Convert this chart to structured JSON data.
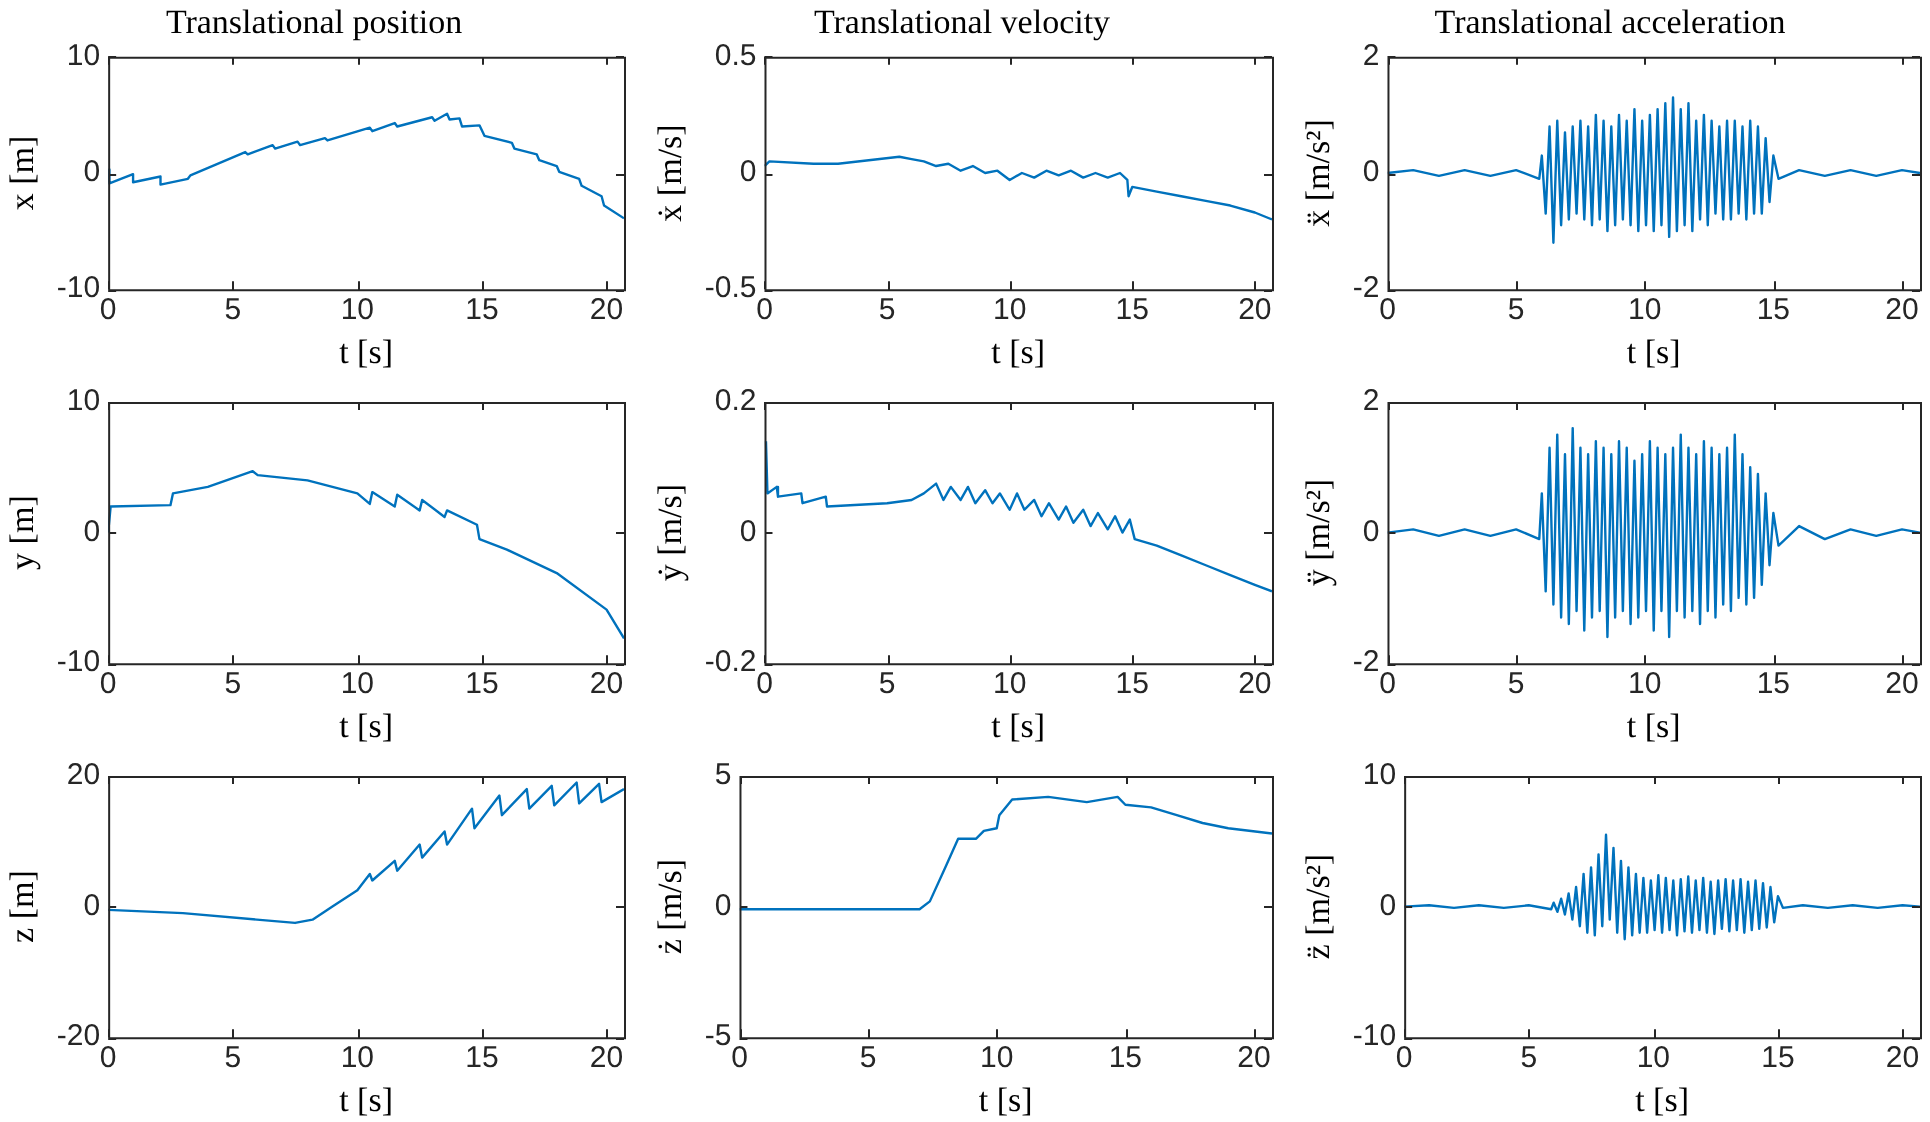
{
  "chart_data": [
    {
      "type": "line",
      "title": "Translational position",
      "xlabel": "t [s]",
      "ylabel": "x [m]",
      "color": "#0072bd",
      "marker": "none",
      "line_style": "solid",
      "xlim": [
        0,
        20.7
      ],
      "xticks": [
        0,
        5,
        10,
        15,
        20
      ],
      "ylim": [
        -10,
        10
      ],
      "yticks": [
        -10,
        0,
        10
      ],
      "x": [
        0,
        0.05,
        1.0,
        1.0,
        2.1,
        2.1,
        3.2,
        3.3,
        5.5,
        5.6,
        6.6,
        6.7,
        7.6,
        7.7,
        8.7,
        8.8,
        10.5,
        10.6,
        11.5,
        11.6,
        13.0,
        13.1,
        13.6,
        13.7,
        14.1,
        14.2,
        14.9,
        15.1,
        16.2,
        16.3,
        17.2,
        17.3,
        18.0,
        18.1,
        18.9,
        19.0,
        19.8,
        19.9,
        20.7
      ],
      "values": [
        0.3,
        -0.9,
        -0.1,
        -0.8,
        -0.3,
        -1.0,
        -0.5,
        -0.2,
        1.8,
        1.6,
        2.4,
        2.1,
        2.7,
        2.4,
        3.0,
        2.8,
        3.9,
        3.6,
        4.3,
        4.0,
        4.8,
        4.5,
        5.1,
        4.6,
        4.7,
        4.0,
        4.1,
        3.2,
        2.6,
        2.1,
        1.6,
        1.1,
        0.6,
        0.1,
        -0.5,
        -1.1,
        -2.0,
        -2.8,
        -3.9
      ]
    },
    {
      "type": "line",
      "title": "Translational velocity",
      "xlabel": "t [s]",
      "ylabel": "ẋ [m/s]",
      "color": "#0072bd",
      "marker": "none",
      "line_style": "solid",
      "xlim": [
        0,
        20.7
      ],
      "xticks": [
        0,
        5,
        10,
        15,
        20
      ],
      "ylim": [
        -0.5,
        0.5
      ],
      "yticks": [
        -0.5,
        0,
        0.5
      ],
      "x": [
        0,
        0.2,
        2,
        3,
        5.5,
        6,
        6.5,
        7,
        7.5,
        8,
        8.5,
        9,
        9.5,
        10,
        10.5,
        11,
        11.5,
        12,
        12.5,
        13,
        13.5,
        14,
        14.5,
        14.8,
        14.85,
        15,
        16,
        17,
        18,
        19,
        20,
        20.7
      ],
      "values": [
        0.03,
        0.05,
        0.04,
        0.04,
        0.07,
        0.06,
        0.05,
        0.03,
        0.04,
        0.01,
        0.03,
        0.0,
        0.01,
        -0.03,
        0.0,
        -0.02,
        0.01,
        -0.01,
        0.01,
        -0.02,
        0.0,
        -0.02,
        0.0,
        -0.03,
        -0.1,
        -0.06,
        -0.08,
        -0.1,
        -0.12,
        -0.14,
        -0.17,
        -0.2
      ]
    },
    {
      "type": "line",
      "title": "Translational acceleration",
      "xlabel": "t [s]",
      "ylabel": "ẍ [m/s²]",
      "color": "#0072bd",
      "marker": "none",
      "line_style": "solid",
      "xlim": [
        0,
        20.7
      ],
      "xticks": [
        0,
        5,
        10,
        15,
        20
      ],
      "ylim": [
        -2,
        2
      ],
      "yticks": [
        -2,
        0,
        2
      ],
      "x": [
        0,
        1,
        2,
        3,
        4,
        5,
        5.9,
        6.0,
        6.15,
        6.3,
        6.45,
        6.6,
        6.75,
        6.9,
        7.05,
        7.2,
        7.35,
        7.5,
        7.65,
        7.8,
        7.95,
        8.1,
        8.25,
        8.4,
        8.55,
        8.7,
        8.85,
        9.0,
        9.15,
        9.3,
        9.45,
        9.6,
        9.75,
        9.9,
        10.05,
        10.2,
        10.35,
        10.5,
        10.65,
        10.8,
        10.95,
        11.1,
        11.25,
        11.4,
        11.55,
        11.7,
        11.85,
        12.0,
        12.15,
        12.3,
        12.45,
        12.6,
        12.75,
        12.9,
        13.05,
        13.2,
        13.35,
        13.5,
        13.65,
        13.8,
        13.95,
        14.1,
        14.25,
        14.4,
        14.55,
        14.7,
        14.85,
        15.0,
        15.2,
        16,
        17,
        18,
        19,
        20,
        20.7
      ],
      "values": [
        0,
        0.05,
        -0.05,
        0.05,
        -0.05,
        0.05,
        -0.1,
        0.3,
        -0.7,
        0.8,
        -1.2,
        0.9,
        -0.9,
        0.7,
        -0.8,
        0.8,
        -0.7,
        0.9,
        -0.8,
        0.8,
        -0.9,
        1.0,
        -0.8,
        0.9,
        -1.0,
        0.8,
        -0.9,
        1.0,
        -0.8,
        0.9,
        -0.9,
        1.1,
        -1.0,
        0.9,
        -0.9,
        1.0,
        -1.0,
        1.1,
        -0.9,
        1.2,
        -1.1,
        1.3,
        -1.0,
        1.1,
        -0.9,
        1.2,
        -1.0,
        0.9,
        -0.8,
        1.0,
        -0.9,
        0.9,
        -0.7,
        0.8,
        -0.8,
        0.9,
        -0.8,
        0.9,
        -0.7,
        0.8,
        -0.8,
        0.9,
        -0.7,
        0.8,
        -0.7,
        0.6,
        -0.5,
        0.3,
        -0.1,
        0.05,
        -0.05,
        0.05,
        -0.05,
        0.05,
        0
      ]
    },
    {
      "type": "line",
      "xlabel": "t [s]",
      "ylabel": "y [m]",
      "color": "#0072bd",
      "marker": "none",
      "line_style": "solid",
      "xlim": [
        0,
        20.7
      ],
      "xticks": [
        0,
        5,
        10,
        15,
        20
      ],
      "ylim": [
        -10,
        10
      ],
      "yticks": [
        -10,
        0,
        10
      ],
      "x": [
        0,
        0.1,
        2.5,
        2.6,
        4,
        5.8,
        6,
        8,
        10,
        10.5,
        10.6,
        11.5,
        11.6,
        12.5,
        12.6,
        13.5,
        13.6,
        14.8,
        14.9,
        16,
        18,
        20,
        20.7
      ],
      "values": [
        0,
        2,
        2.1,
        3,
        3.5,
        4.7,
        4.4,
        4.0,
        3.0,
        2.2,
        3.1,
        2.0,
        2.9,
        1.7,
        2.5,
        1.2,
        1.7,
        0.6,
        -0.5,
        -1.3,
        -3.1,
        -5.9,
        -8.1
      ]
    },
    {
      "type": "line",
      "xlabel": "t [s]",
      "ylabel": "ẏ [m/s]",
      "color": "#0072bd",
      "marker": "none",
      "line_style": "solid",
      "xlim": [
        0,
        20.7
      ],
      "xticks": [
        0,
        5,
        10,
        15,
        20
      ],
      "ylim": [
        -0.2,
        0.2
      ],
      "yticks": [
        -0.2,
        0,
        0.2
      ],
      "x": [
        0.06,
        0.12,
        0.5,
        0.55,
        1.5,
        1.55,
        2.5,
        2.55,
        5,
        6,
        6.5,
        7,
        7.3,
        7.6,
        8,
        8.3,
        8.6,
        9,
        9.3,
        9.6,
        10,
        10.3,
        10.6,
        11,
        11.3,
        11.6,
        12,
        12.3,
        12.6,
        13,
        13.3,
        13.6,
        14,
        14.3,
        14.6,
        14.9,
        15.1,
        16,
        17,
        18,
        19,
        20,
        20.7
      ],
      "values": [
        0.14,
        0.06,
        0.07,
        0.055,
        0.06,
        0.045,
        0.055,
        0.04,
        0.045,
        0.05,
        0.06,
        0.075,
        0.05,
        0.07,
        0.05,
        0.07,
        0.045,
        0.065,
        0.045,
        0.06,
        0.035,
        0.06,
        0.035,
        0.05,
        0.025,
        0.045,
        0.02,
        0.04,
        0.015,
        0.035,
        0.01,
        0.03,
        0.005,
        0.025,
        0.0,
        0.02,
        -0.01,
        -0.02,
        -0.035,
        -0.05,
        -0.065,
        -0.08,
        -0.09
      ]
    },
    {
      "type": "line",
      "xlabel": "t [s]",
      "ylabel": "ÿ [m/s²]",
      "color": "#0072bd",
      "marker": "none",
      "line_style": "solid",
      "xlim": [
        0,
        20.7
      ],
      "xticks": [
        0,
        5,
        10,
        15,
        20
      ],
      "ylim": [
        -2,
        2
      ],
      "yticks": [
        -2,
        0,
        2
      ],
      "x": [
        0,
        1,
        2,
        3,
        4,
        5,
        5.9,
        6.0,
        6.15,
        6.3,
        6.45,
        6.6,
        6.75,
        6.9,
        7.05,
        7.2,
        7.35,
        7.5,
        7.65,
        7.8,
        7.95,
        8.1,
        8.25,
        8.4,
        8.55,
        8.7,
        8.85,
        9.0,
        9.15,
        9.3,
        9.45,
        9.6,
        9.75,
        9.9,
        10.05,
        10.2,
        10.35,
        10.5,
        10.65,
        10.8,
        10.95,
        11.1,
        11.25,
        11.4,
        11.55,
        11.7,
        11.85,
        12.0,
        12.15,
        12.3,
        12.45,
        12.6,
        12.75,
        12.9,
        13.05,
        13.2,
        13.35,
        13.5,
        13.65,
        13.8,
        13.95,
        14.1,
        14.25,
        14.4,
        14.55,
        14.7,
        14.85,
        15.0,
        15.2,
        16,
        17,
        18,
        19,
        20,
        20.7
      ],
      "values": [
        0,
        0.05,
        -0.05,
        0.05,
        -0.05,
        0.05,
        -0.1,
        0.6,
        -0.9,
        1.3,
        -1.1,
        1.5,
        -1.3,
        1.2,
        -1.4,
        1.6,
        -1.2,
        1.3,
        -1.5,
        1.2,
        -1.3,
        1.4,
        -1.2,
        1.3,
        -1.6,
        1.2,
        -1.3,
        1.4,
        -1.2,
        1.3,
        -1.4,
        1.1,
        -1.3,
        1.2,
        -1.2,
        1.4,
        -1.5,
        1.3,
        -1.2,
        1.2,
        -1.6,
        1.3,
        -1.2,
        1.5,
        -1.3,
        1.3,
        -1.2,
        1.2,
        -1.4,
        1.4,
        -1.2,
        1.3,
        -1.3,
        1.2,
        -1.1,
        1.3,
        -1.2,
        1.5,
        -1.0,
        1.2,
        -1.1,
        1.0,
        -1.0,
        0.9,
        -0.8,
        0.6,
        -0.5,
        0.3,
        -0.2,
        0.1,
        -0.1,
        0.05,
        -0.05,
        0.05,
        0
      ]
    },
    {
      "type": "line",
      "xlabel": "t [s]",
      "ylabel": "z [m]",
      "color": "#0072bd",
      "marker": "none",
      "line_style": "solid",
      "xlim": [
        0,
        20.7
      ],
      "xticks": [
        0,
        5,
        10,
        15,
        20
      ],
      "ylim": [
        -20,
        20
      ],
      "yticks": [
        -20,
        0,
        20
      ],
      "x": [
        0,
        3,
        7.5,
        8.2,
        9,
        10,
        10.5,
        10.6,
        11.5,
        11.6,
        12.5,
        12.6,
        13.5,
        13.6,
        14.6,
        14.7,
        15.7,
        15.8,
        16.8,
        16.9,
        17.8,
        17.9,
        18.8,
        18.9,
        19.7,
        19.8,
        20.7
      ],
      "values": [
        -0.5,
        -1,
        -2.5,
        -2,
        0,
        2.5,
        5,
        4,
        7,
        5.5,
        9.5,
        7.5,
        11.5,
        9.5,
        15,
        12,
        17,
        14,
        18,
        15,
        18.5,
        15.5,
        19,
        15.8,
        18.8,
        16,
        18
      ]
    },
    {
      "type": "line",
      "xlabel": "t [s]",
      "ylabel": "ż [m/s]",
      "color": "#0072bd",
      "marker": "none",
      "line_style": "solid",
      "xlim": [
        0,
        20.7
      ],
      "xticks": [
        0,
        5,
        10,
        15,
        20
      ],
      "ylim": [
        -5,
        5
      ],
      "yticks": [
        -5,
        0,
        5
      ],
      "x": [
        0,
        7,
        7.4,
        8,
        8.5,
        9.2,
        9.5,
        10,
        10.1,
        10.6,
        12,
        13.5,
        14.7,
        15,
        16,
        17,
        18,
        19,
        20.7
      ],
      "values": [
        -0.1,
        -0.1,
        0.2,
        1.5,
        2.6,
        2.6,
        2.9,
        3.0,
        3.5,
        4.1,
        4.2,
        4.0,
        4.2,
        3.9,
        3.8,
        3.5,
        3.2,
        3.0,
        2.8
      ]
    },
    {
      "type": "line",
      "xlabel": "t [s]",
      "ylabel": "z̈ [m/s²]",
      "color": "#0072bd",
      "marker": "none",
      "line_style": "solid",
      "xlim": [
        0,
        20.7
      ],
      "xticks": [
        0,
        5,
        10,
        15,
        20
      ],
      "ylim": [
        -10,
        10
      ],
      "yticks": [
        -10,
        0,
        10
      ],
      "x": [
        0,
        1,
        2,
        3,
        4,
        5,
        5.9,
        6.0,
        6.15,
        6.3,
        6.45,
        6.6,
        6.75,
        6.9,
        7.05,
        7.2,
        7.35,
        7.5,
        7.65,
        7.8,
        7.95,
        8.1,
        8.25,
        8.4,
        8.55,
        8.7,
        8.85,
        9.0,
        9.15,
        9.3,
        9.45,
        9.6,
        9.75,
        9.9,
        10.05,
        10.2,
        10.35,
        10.5,
        10.65,
        10.8,
        10.95,
        11.1,
        11.25,
        11.4,
        11.55,
        11.7,
        11.85,
        12.0,
        12.15,
        12.3,
        12.45,
        12.6,
        12.75,
        12.9,
        13.05,
        13.2,
        13.35,
        13.5,
        13.65,
        13.8,
        13.95,
        14.1,
        14.25,
        14.4,
        14.55,
        14.7,
        14.85,
        15.0,
        15.2,
        16,
        17,
        18,
        19,
        20,
        20.7
      ],
      "values": [
        0,
        0.1,
        -0.1,
        0.1,
        -0.1,
        0.1,
        -0.2,
        0.3,
        -0.4,
        0.6,
        -0.6,
        1.0,
        -1.0,
        1.5,
        -1.5,
        2.5,
        -2.0,
        3.0,
        -2.2,
        4.0,
        -1.5,
        5.5,
        -1.0,
        4.5,
        -2.0,
        3.5,
        -2.5,
        3.0,
        -2.2,
        2.5,
        -2.0,
        2.2,
        -2.0,
        2.0,
        -1.8,
        2.4,
        -2.0,
        2.2,
        -1.8,
        2.0,
        -2.2,
        2.1,
        -1.9,
        2.3,
        -2.0,
        2.0,
        -1.8,
        2.2,
        -2.0,
        1.9,
        -2.1,
        2.0,
        -1.7,
        2.1,
        -1.9,
        2.0,
        -1.8,
        2.1,
        -2.0,
        1.9,
        -1.8,
        2.0,
        -1.7,
        1.8,
        -1.6,
        1.5,
        -1.2,
        0.8,
        -0.1,
        0.1,
        -0.1,
        0.1,
        -0.1,
        0.1,
        0
      ]
    }
  ]
}
